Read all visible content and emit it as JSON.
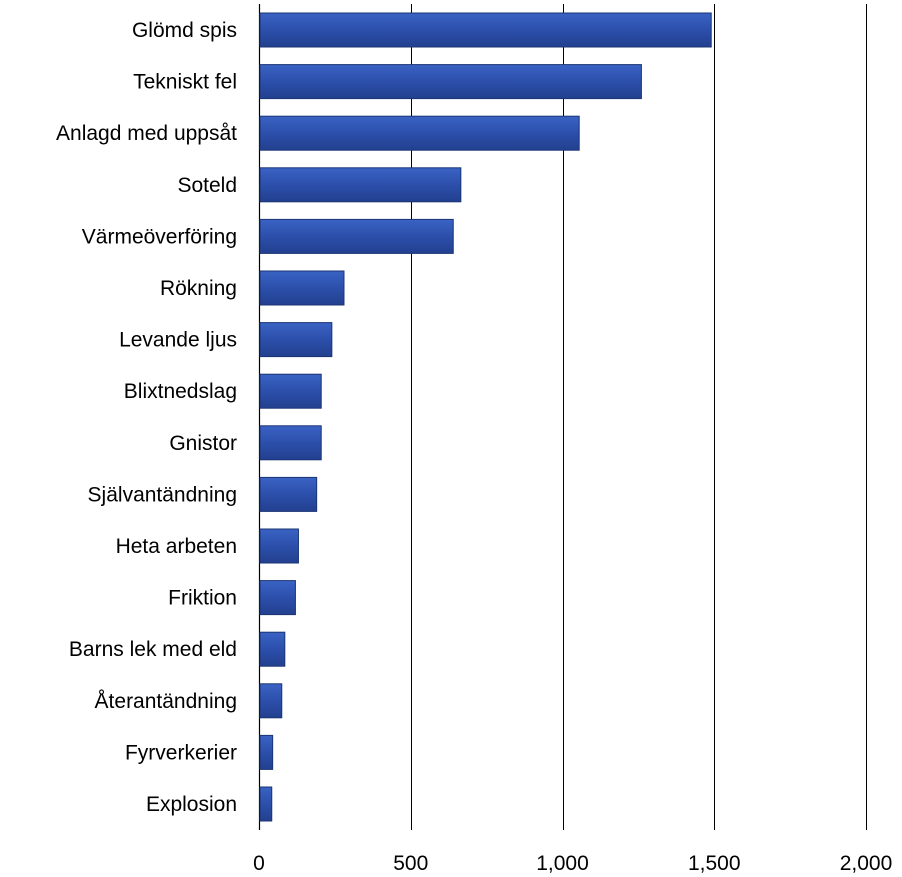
{
  "colors": {
    "bar_fill": "#2c4fab",
    "bar_edge": "#1b3474",
    "grid": "#000000",
    "text": "#000000"
  },
  "chart_data": {
    "type": "bar",
    "orientation": "horizontal",
    "title": "",
    "xlabel": "",
    "ylabel": "",
    "categories": [
      "Glömd spis",
      "Tekniskt fel",
      "Anlagd med uppsåt",
      "Soteld",
      "Värmeöverföring",
      "Rökning",
      "Levande ljus",
      "Blixtnedslag",
      "Gnistor",
      "Självantändning",
      "Heta arbeten",
      "Friktion",
      "Barns lek med eld",
      "Återantändning",
      "Fyrverkerier",
      "Explosion"
    ],
    "values": [
      1490,
      1260,
      1055,
      665,
      640,
      280,
      240,
      205,
      205,
      190,
      130,
      120,
      85,
      75,
      45,
      42
    ],
    "xlim": [
      0,
      2000
    ],
    "xticks": [
      0,
      500,
      1000,
      1500,
      2000
    ],
    "xtick_labels": [
      "0",
      "500",
      "1,000",
      "1,500",
      "2,000"
    ],
    "grid": "vertical",
    "legend": "none"
  }
}
